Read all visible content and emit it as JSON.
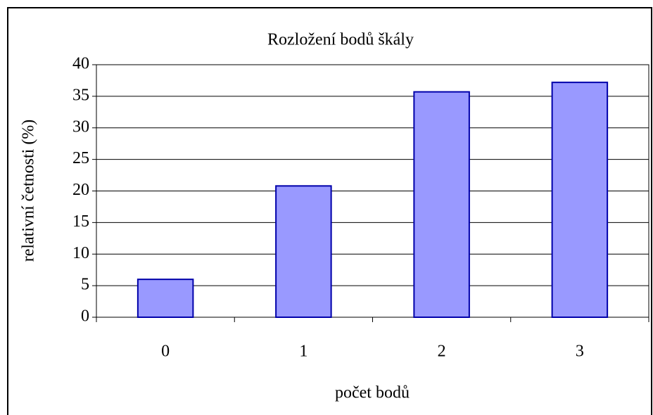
{
  "chart_data": {
    "type": "bar",
    "title": "Rozložení bodů škály",
    "x_label": "počet bodů",
    "y_label": "relativní četnosti (%)",
    "categories": [
      "0",
      "1",
      "2",
      "3"
    ],
    "values": [
      6.0,
      20.8,
      35.7,
      37.2
    ],
    "color": "#9999ff",
    "ylim": [
      0,
      40
    ],
    "yticks": [
      0,
      5,
      10,
      15,
      20,
      25,
      30,
      35,
      40
    ],
    "grid": true
  }
}
